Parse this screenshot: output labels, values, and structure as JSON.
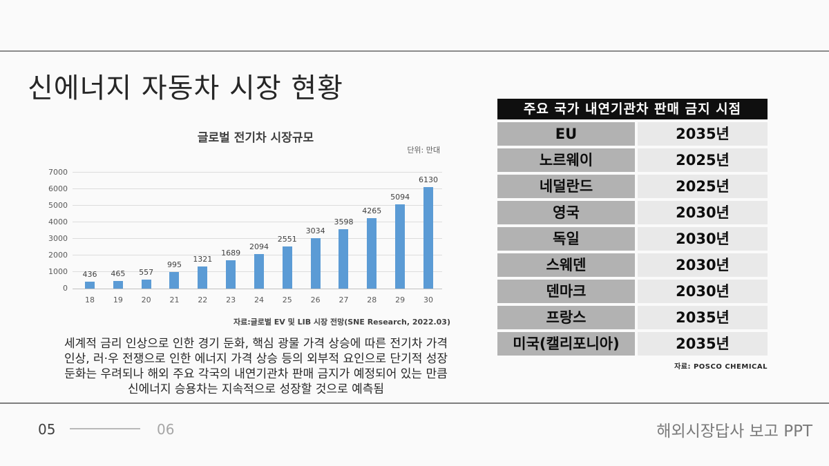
{
  "slide": {
    "title": "신에너지 자동차 시장 현황",
    "footer": {
      "page_current": "05",
      "page_next": "06",
      "right_text": "해외시장답사 보고 PPT"
    }
  },
  "chart_data": {
    "type": "bar",
    "title": "글로벌 전기차 시장규모",
    "unit_label": "단위: 만대",
    "source": "자료:글로벌 EV 및 LIB 시장 전망(SNE Research, 2022.03)",
    "categories": [
      "18",
      "19",
      "20",
      "21",
      "22",
      "23",
      "24",
      "25",
      "26",
      "27",
      "28",
      "29",
      "30"
    ],
    "values": [
      436,
      465,
      557,
      995,
      1321,
      1689,
      2094,
      2551,
      3034,
      3598,
      4265,
      5094,
      6130
    ],
    "xlabel": "",
    "ylabel": "",
    "ylim": [
      0,
      7000
    ],
    "ytick_step": 1000,
    "grid": true,
    "legend_position": "none",
    "bar_color": "#5b9bd5"
  },
  "table": {
    "header": "주요 국가 내연기관차 판매 금지 시점",
    "rows": [
      {
        "country": "EU",
        "year": "2035년"
      },
      {
        "country": "노르웨이",
        "year": "2025년"
      },
      {
        "country": "네덜란드",
        "year": "2025년"
      },
      {
        "country": "영국",
        "year": "2030년"
      },
      {
        "country": "독일",
        "year": "2030년"
      },
      {
        "country": "스웨덴",
        "year": "2030년"
      },
      {
        "country": "덴마크",
        "year": "2030년"
      },
      {
        "country": "프랑스",
        "year": "2035년"
      },
      {
        "country": "미국(캘리포니아)",
        "year": "2035년"
      }
    ],
    "source": "자료: POSCO CHEMICAL"
  },
  "commentary": {
    "lines": [
      "세계적 금리 인상으로 인한 경기 둔화, 핵심 광물 가격 상승에 따른 전기차 가격",
      "인상, 러·우 전쟁으로 인한 에너지 가격 상승 등의 외부적 요인으로 단기적 성장",
      "둔화는 우려되나 해외 주요 각국의 내연기관차 판매 금지가 예정되어 있는 만큼",
      "신에너지 승용차는 지속적으로 성장할 것으로 예측됨"
    ]
  }
}
